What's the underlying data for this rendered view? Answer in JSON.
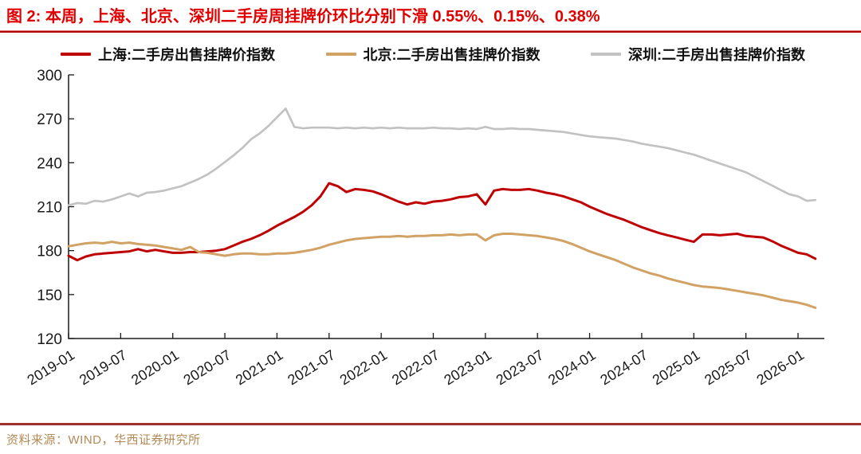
{
  "title": {
    "text": "图 2: 本周，上海、北京、深圳二手房周挂牌价环比分别下滑 0.55%、0.15%、0.38%"
  },
  "footer": {
    "source": "资料来源：WIND，华西证券研究所"
  },
  "colors": {
    "title_red": "#e00000",
    "title_rule": "#b00000",
    "footer_rule": "#9e2f2f",
    "source_text": "#b38a55",
    "axis": "#1a1a1a",
    "shanghai_red": "#bf0000",
    "beijing_tan": "#d2a265",
    "shenzhen_gray": "#c2c2c2"
  },
  "chart_data": {
    "type": "line",
    "title": "二手房出售挂牌价指数",
    "frequency": "monthly",
    "x_start": "2019-01",
    "x_end": "2026-03",
    "x_tick_every": 6,
    "x_tick_labels": [
      "2019-01",
      "2019-07",
      "2020-01",
      "2020-07",
      "2021-01",
      "2021-07",
      "2022-01",
      "2022-07",
      "2023-01",
      "2023-07",
      "2024-01",
      "2024-07",
      "2025-01",
      "2025-07",
      "2026-01"
    ],
    "y_ticks": [
      300,
      270,
      240,
      210,
      180,
      150,
      120
    ],
    "ylim": [
      120,
      300
    ],
    "grid": false,
    "legend_position": "top",
    "series": [
      {
        "id": "shanghai",
        "name": "上海:二手房出售挂牌价指数",
        "color": "#bf0000",
        "values": [
          176.5,
          173.5,
          176,
          177.5,
          178,
          178.5,
          179,
          179.5,
          181,
          179.5,
          180.5,
          179.5,
          178.5,
          178.5,
          179,
          179,
          179.5,
          180,
          181,
          183.5,
          186,
          188,
          190.5,
          193.5,
          197,
          200,
          203,
          206.5,
          211,
          217,
          226,
          224,
          220,
          222,
          221.5,
          220.5,
          218.5,
          216,
          213.5,
          211.5,
          213,
          212,
          213.5,
          214,
          215,
          216.5,
          217,
          218.5,
          211.5,
          221,
          222,
          221.5,
          221.5,
          222,
          221,
          219.5,
          218.5,
          217,
          215,
          213,
          210,
          207.5,
          205,
          203,
          201,
          198.5,
          196,
          194,
          192,
          190.5,
          189,
          187.5,
          186,
          191,
          191,
          190.5,
          191,
          191.5,
          190,
          189.5,
          189,
          186.5,
          183.5,
          181,
          178.5,
          177.5,
          174.5
        ]
      },
      {
        "id": "beijing",
        "name": "北京:二手房出售挂牌价指数",
        "color": "#d2a265",
        "values": [
          183,
          184,
          185,
          185.5,
          185,
          186,
          185,
          185.5,
          184.5,
          184,
          183.5,
          182.5,
          181.5,
          180.5,
          182.5,
          179,
          178.5,
          177.5,
          176.5,
          177.5,
          178,
          178,
          177.5,
          177.5,
          178,
          178,
          178.5,
          179.5,
          180.5,
          182,
          184,
          185.5,
          187,
          188,
          188.5,
          189,
          189.5,
          189.5,
          190,
          189.5,
          190,
          190,
          190.5,
          190.5,
          191,
          190.5,
          191,
          191,
          187,
          190.5,
          191.5,
          191.5,
          191,
          190.5,
          190,
          189,
          188,
          186.5,
          184.5,
          182,
          179.5,
          177.5,
          175.5,
          173.5,
          171,
          168.5,
          166.5,
          164.5,
          163,
          161,
          159.5,
          158,
          156.5,
          155.5,
          155,
          154.5,
          153.5,
          152.5,
          151.5,
          150.5,
          149.5,
          148,
          146.5,
          145.5,
          144.5,
          143,
          141
        ]
      },
      {
        "id": "shenzhen",
        "name": "深圳:二手房出售挂牌价指数",
        "color": "#c2c2c2",
        "values": [
          211,
          212.5,
          212,
          214,
          213.5,
          215,
          217,
          219,
          217,
          219.5,
          220,
          221,
          222.5,
          224,
          226.5,
          229,
          232,
          236,
          240.5,
          245,
          250,
          256,
          260,
          265,
          271,
          277,
          264.5,
          263.5,
          264,
          264,
          264,
          263.5,
          264,
          263.5,
          264,
          263.5,
          264,
          263.5,
          264,
          263.5,
          263.5,
          263.5,
          264,
          263.5,
          263.5,
          263,
          263.5,
          263,
          264.5,
          263,
          263,
          263.5,
          263,
          263,
          262.5,
          262,
          261.5,
          261,
          260,
          259,
          258,
          257.5,
          257,
          256.5,
          255.5,
          254.5,
          253,
          252,
          251,
          250,
          248.5,
          247,
          245.5,
          243.5,
          241.5,
          239.5,
          237.5,
          235.5,
          233.5,
          230.5,
          227.5,
          224.5,
          221.5,
          218.5,
          217,
          214,
          214.5
        ]
      }
    ]
  }
}
